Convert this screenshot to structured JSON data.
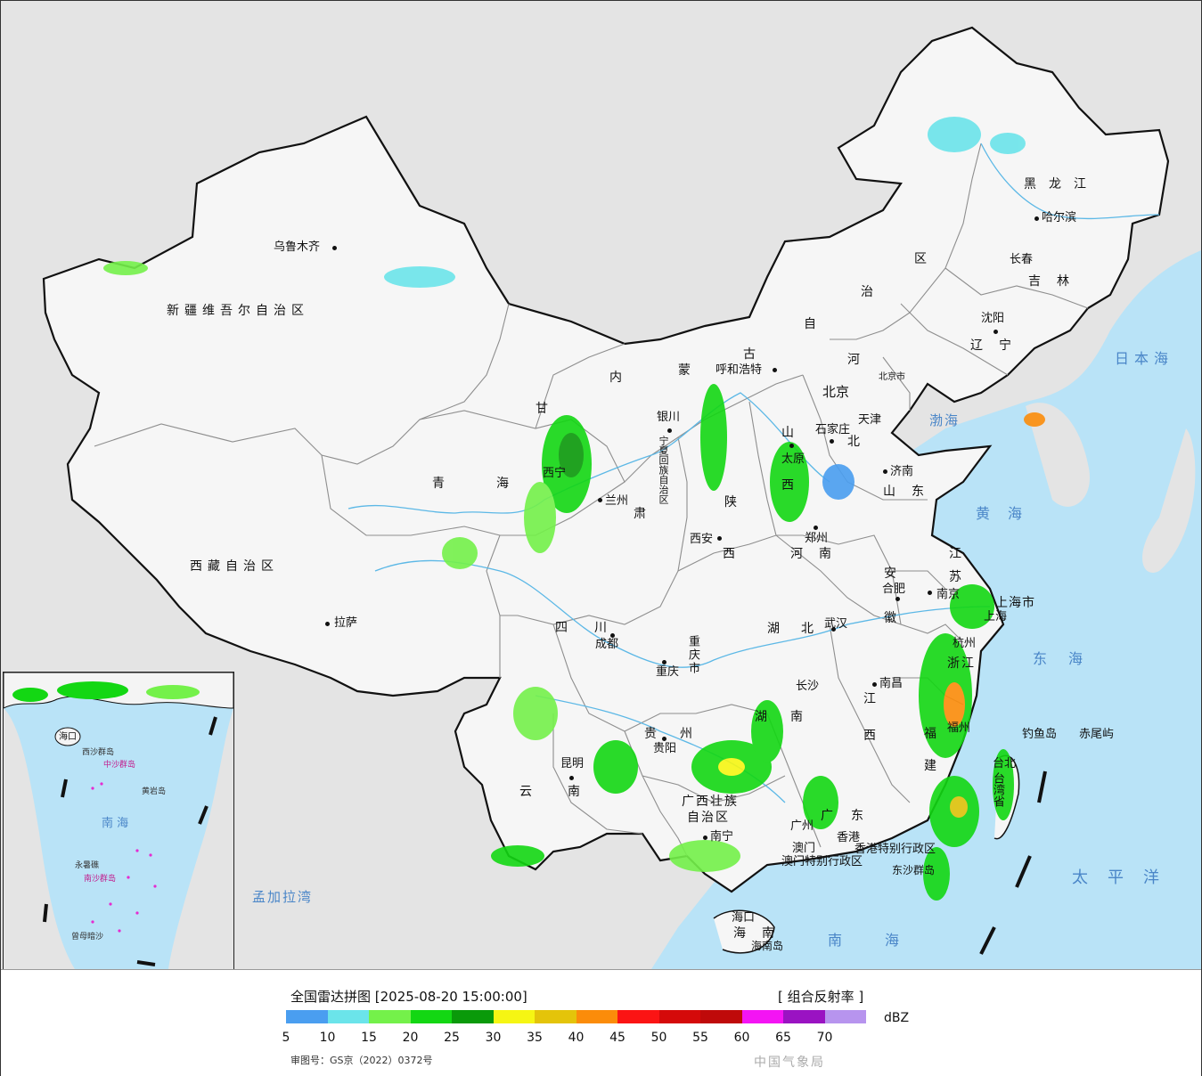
{
  "colors": {
    "sea": "#b9e3f7",
    "land_foreign": "#e4e4e4",
    "land_china": "#f4f4f4",
    "border": "#111111",
    "province_line": "#9a9a9a",
    "river": "#5cb8e6"
  },
  "map": {
    "provinces": [
      {
        "id": "xinjiang",
        "label": "新疆维吾尔自治区"
      },
      {
        "id": "xizang",
        "label": "西藏自治区"
      },
      {
        "id": "qinghai-a",
        "label": "青"
      },
      {
        "id": "qinghai-b",
        "label": "海"
      },
      {
        "id": "gansu-a",
        "label": "甘"
      },
      {
        "id": "gansu-b",
        "label": "肃"
      },
      {
        "id": "neimenggu-1",
        "label": "内"
      },
      {
        "id": "neimenggu-2",
        "label": "蒙"
      },
      {
        "id": "neimenggu-3",
        "label": "古"
      },
      {
        "id": "neimenggu-4",
        "label": "自"
      },
      {
        "id": "neimenggu-5",
        "label": "治"
      },
      {
        "id": "neimenggu-6",
        "label": "区"
      },
      {
        "id": "heilongjiang",
        "label": "黑龙江"
      },
      {
        "id": "jilin",
        "label": "吉林"
      },
      {
        "id": "liaoning",
        "label": "辽宁"
      },
      {
        "id": "hebei-a",
        "label": "河"
      },
      {
        "id": "hebei-b",
        "label": "北"
      },
      {
        "id": "shanxi-a",
        "label": "山"
      },
      {
        "id": "shanxi-b",
        "label": "西"
      },
      {
        "id": "shandong",
        "label": "山东"
      },
      {
        "id": "henan",
        "label": "河南"
      },
      {
        "id": "shaanxi-a",
        "label": "陕"
      },
      {
        "id": "shaanxi-b",
        "label": "西"
      },
      {
        "id": "sichuan",
        "label": "四川"
      },
      {
        "id": "hubei",
        "label": "湖北"
      },
      {
        "id": "hunan-a",
        "label": "湖"
      },
      {
        "id": "hunan-b",
        "label": "南"
      },
      {
        "id": "jiangxi-a",
        "label": "江"
      },
      {
        "id": "jiangxi-b",
        "label": "西"
      },
      {
        "id": "anhui-a",
        "label": "安"
      },
      {
        "id": "anhui-b",
        "label": "徽"
      },
      {
        "id": "jiangsu-a",
        "label": "江"
      },
      {
        "id": "jiangsu-b",
        "label": "苏"
      },
      {
        "id": "zhejiang",
        "label": "浙江"
      },
      {
        "id": "fujian-a",
        "label": "福"
      },
      {
        "id": "fujian-b",
        "label": "建"
      },
      {
        "id": "guizhou",
        "label": "贵州"
      },
      {
        "id": "yunnan",
        "label": "云南"
      },
      {
        "id": "guangxi-a",
        "label": "广西壮族"
      },
      {
        "id": "guangxi-b",
        "label": "自治区"
      },
      {
        "id": "guangdong",
        "label": "广东"
      },
      {
        "id": "hainan",
        "label": "海南"
      },
      {
        "id": "chongqing",
        "label": "重庆市"
      },
      {
        "id": "shanghai",
        "label": "上海市"
      },
      {
        "id": "ningxia",
        "label": "宁夏回族自治区"
      },
      {
        "id": "hk",
        "label": "香港特别行政区"
      },
      {
        "id": "macau",
        "label": "澳门特别行政区"
      },
      {
        "id": "taiwan",
        "label": "台湾省"
      }
    ],
    "cities": [
      {
        "id": "urumqi",
        "label": "乌鲁木齐"
      },
      {
        "id": "lhasa",
        "label": "拉萨"
      },
      {
        "id": "xining",
        "label": "西宁"
      },
      {
        "id": "lanzhou",
        "label": "兰州"
      },
      {
        "id": "yinchuan",
        "label": "银川"
      },
      {
        "id": "hohhot",
        "label": "呼和浩特"
      },
      {
        "id": "harbin",
        "label": "哈尔滨"
      },
      {
        "id": "changchun",
        "label": "长春"
      },
      {
        "id": "shenyang",
        "label": "沈阳"
      },
      {
        "id": "beijing",
        "label": "北京"
      },
      {
        "id": "beijing-shi",
        "label": "北京市"
      },
      {
        "id": "tianjin",
        "label": "天津"
      },
      {
        "id": "shijiazhuang",
        "label": "石家庄"
      },
      {
        "id": "taiyuan",
        "label": "太原"
      },
      {
        "id": "jinan",
        "label": "济南"
      },
      {
        "id": "zhengzhou",
        "label": "郑州"
      },
      {
        "id": "xian",
        "label": "西安"
      },
      {
        "id": "chengdu",
        "label": "成都"
      },
      {
        "id": "chongqing-c",
        "label": "重庆"
      },
      {
        "id": "wuhan",
        "label": "武汉"
      },
      {
        "id": "hefei",
        "label": "合肥"
      },
      {
        "id": "nanjing",
        "label": "南京"
      },
      {
        "id": "shanghai-c",
        "label": "上海"
      },
      {
        "id": "hangzhou",
        "label": "杭州"
      },
      {
        "id": "nanchang",
        "label": "南昌"
      },
      {
        "id": "changsha",
        "label": "长沙"
      },
      {
        "id": "fuzhou",
        "label": "福州"
      },
      {
        "id": "guiyang",
        "label": "贵阳"
      },
      {
        "id": "kunming",
        "label": "昆明"
      },
      {
        "id": "nanning",
        "label": "南宁"
      },
      {
        "id": "guangzhou",
        "label": "广州"
      },
      {
        "id": "hongkong",
        "label": "香港"
      },
      {
        "id": "aomen",
        "label": "澳门"
      },
      {
        "id": "haikou",
        "label": "海口"
      },
      {
        "id": "taibei",
        "label": "台北"
      },
      {
        "id": "hainan-dao",
        "label": "海南岛"
      },
      {
        "id": "diaoyu",
        "label": "钓鱼岛"
      },
      {
        "id": "chiwei",
        "label": "赤尾屿"
      },
      {
        "id": "dongsha",
        "label": "东沙群岛"
      }
    ],
    "seas": [
      {
        "id": "bohai",
        "label": "渤海"
      },
      {
        "id": "huanghai",
        "label": "黄海"
      },
      {
        "id": "donghai",
        "label": "东海"
      },
      {
        "id": "nanhai",
        "label": "南海"
      },
      {
        "id": "riben",
        "label": "日本海"
      },
      {
        "id": "taipingyang",
        "label": "太平洋"
      },
      {
        "id": "mengjiala",
        "label": "孟加拉湾"
      }
    ],
    "inset": [
      {
        "id": "i-nanhai",
        "label": "南  海"
      },
      {
        "id": "i-haikou",
        "label": "海口"
      },
      {
        "id": "i-xisha",
        "label": "西沙群岛"
      },
      {
        "id": "i-zhongsha",
        "label": "中沙群岛"
      },
      {
        "id": "i-huangyan",
        "label": "黄岩岛"
      },
      {
        "id": "i-nansha",
        "label": "南沙群岛"
      },
      {
        "id": "i-zengmu",
        "label": "曾母暗沙"
      },
      {
        "id": "i-yongshu",
        "label": "永暑礁"
      }
    ]
  },
  "legend": {
    "title": "全国雷达拼图 [2025-08-20 15:00:00]",
    "product": "[ 组合反射率 ]",
    "unit": "dBZ",
    "ticks": [
      "5",
      "10",
      "15",
      "20",
      "25",
      "30",
      "35",
      "40",
      "45",
      "50",
      "55",
      "60",
      "65",
      "70"
    ],
    "colors": [
      "#4a9ef0",
      "#6be4ea",
      "#74f14a",
      "#13d713",
      "#0a9a0a",
      "#f6f613",
      "#e4c40a",
      "#fb8c0a",
      "#fb1414",
      "#d50a0a",
      "#bf0a0a",
      "#f414f4",
      "#9a13c2",
      "#b794ee"
    ],
    "note": "审图号：GS京（2022）0372号",
    "faint": "中国气象局"
  }
}
